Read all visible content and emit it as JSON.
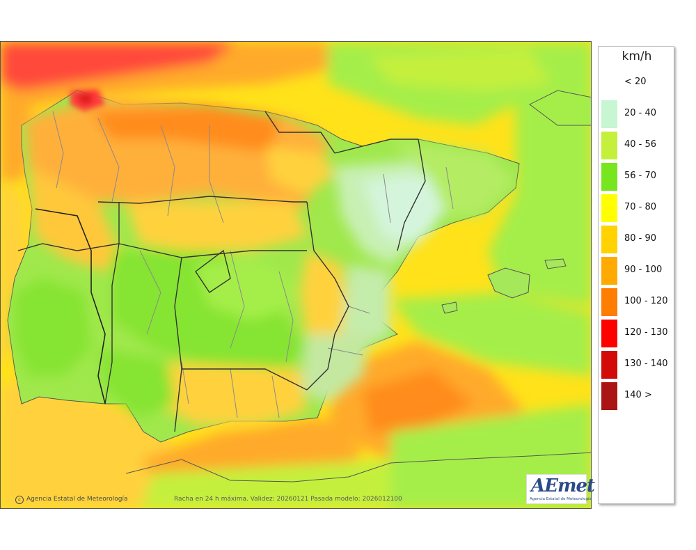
{
  "legend": {
    "unit": "km/h",
    "classes": [
      {
        "label": "< 20",
        "color": ""
      },
      {
        "label": "20 - 40",
        "color": "#c8f5d2"
      },
      {
        "label": "40 - 56",
        "color": "#c4f03c"
      },
      {
        "label": "56 - 70",
        "color": "#78e61e"
      },
      {
        "label": "70 - 80",
        "color": "#ffff00"
      },
      {
        "label": "80 - 90",
        "color": "#ffd200"
      },
      {
        "label": "90 - 100",
        "color": "#ffaa00"
      },
      {
        "label": "100 - 120",
        "color": "#ff7d00"
      },
      {
        "label": "120 - 130",
        "color": "#ff0000"
      },
      {
        "label": "130 - 140",
        "color": "#d20a0a"
      },
      {
        "label": "140 >",
        "color": "#aa1414"
      }
    ]
  },
  "footer": {
    "credit": "Agencia Estatal de Meteorología",
    "caption": "Racha en 24 h máxima. Validez: 20260121 Pasada modelo: 2026012100"
  },
  "logo": {
    "mark": "AEmet",
    "sub": "Agencia Estatal de Meteorología"
  }
}
